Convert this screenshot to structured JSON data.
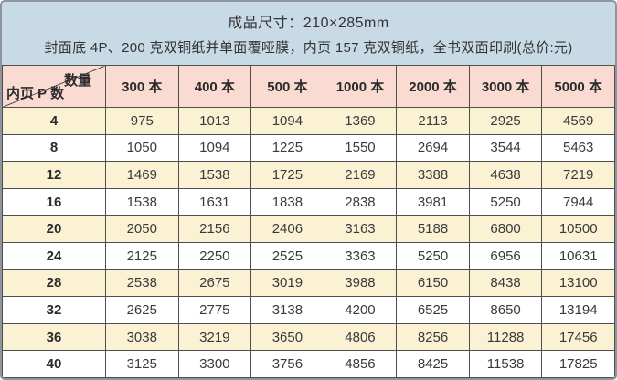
{
  "title": {
    "line1": "成品尺寸：210×285mm",
    "line2": "封面底 4P、200 克双铜纸并单面覆哑膜，内页 157 克双铜纸，全书双面印刷(总价:元)"
  },
  "table": {
    "corner": {
      "top_label": "数量",
      "bottom_label": "内页 P 数"
    },
    "columns": [
      "300 本",
      "400 本",
      "500 本",
      "1000 本",
      "2000 本",
      "3000 本",
      "5000 本"
    ],
    "rows": [
      {
        "pages": "4",
        "prices": [
          "975",
          "1013",
          "1094",
          "1369",
          "2113",
          "2925",
          "4569"
        ]
      },
      {
        "pages": "8",
        "prices": [
          "1050",
          "1094",
          "1225",
          "1550",
          "2694",
          "3544",
          "5463"
        ]
      },
      {
        "pages": "12",
        "prices": [
          "1469",
          "1538",
          "1725",
          "2169",
          "3388",
          "4638",
          "7219"
        ]
      },
      {
        "pages": "16",
        "prices": [
          "1538",
          "1631",
          "1838",
          "2838",
          "3981",
          "5250",
          "7944"
        ]
      },
      {
        "pages": "20",
        "prices": [
          "2050",
          "2156",
          "2406",
          "3163",
          "5188",
          "6800",
          "10500"
        ]
      },
      {
        "pages": "24",
        "prices": [
          "2125",
          "2250",
          "2525",
          "3363",
          "5250",
          "6956",
          "10631"
        ]
      },
      {
        "pages": "28",
        "prices": [
          "2538",
          "2675",
          "3019",
          "3988",
          "6150",
          "8438",
          "13100"
        ]
      },
      {
        "pages": "32",
        "prices": [
          "2625",
          "2775",
          "3138",
          "4200",
          "6525",
          "8650",
          "13194"
        ]
      },
      {
        "pages": "36",
        "prices": [
          "3038",
          "3219",
          "3650",
          "4806",
          "8256",
          "11288",
          "17456"
        ]
      },
      {
        "pages": "40",
        "prices": [
          "3125",
          "3300",
          "3756",
          "4856",
          "8425",
          "11538",
          "17825"
        ]
      }
    ]
  },
  "colors": {
    "background_blue": "#c8dae6",
    "header_pink": "#fadbd2",
    "row_cream": "#fbf1d3",
    "row_white": "#ffffff",
    "grid_border": "#4f4f4f",
    "outer_border": "#8e959c",
    "text": "#333333"
  }
}
